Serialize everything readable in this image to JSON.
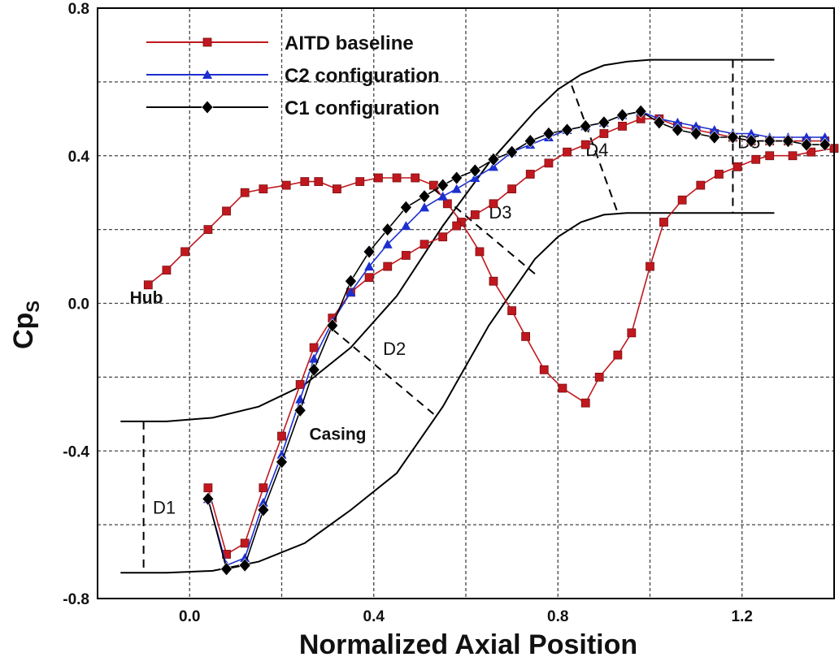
{
  "chart_data": {
    "type": "line",
    "xlabel": "Normalized Axial Position",
    "ylabel": "Cp",
    "ylabel_sub": "S",
    "xlim": [
      -0.2,
      1.4
    ],
    "ylim": [
      -0.8,
      0.8
    ],
    "xticks": [
      "0.0",
      "0.4",
      "0.8",
      "1.2"
    ],
    "xtick_values": [
      0.0,
      0.4,
      0.8,
      1.2
    ],
    "yticks": [
      "0.8",
      "0.4",
      "0.0",
      "-0.4",
      "-0.8"
    ],
    "ytick_values": [
      0.8,
      0.4,
      0.0,
      -0.4,
      -0.8
    ],
    "grid_x": [
      0.2,
      0.6,
      1.0
    ],
    "grid_y": [
      0.6,
      0.2,
      -0.2,
      -0.6
    ],
    "legend_position": "top-left",
    "series": [
      {
        "name": "AITD baseline",
        "color": "#c0181e",
        "marker": "square",
        "segments": [
          {
            "label": "Hub",
            "x": [
              -0.09,
              -0.05,
              -0.01,
              0.04,
              0.08,
              0.12,
              0.16,
              0.21,
              0.25,
              0.28,
              0.32,
              0.37,
              0.41,
              0.45,
              0.49,
              0.53,
              0.56,
              0.59,
              0.63,
              0.66,
              0.7,
              0.73,
              0.77,
              0.81,
              0.86,
              0.89,
              0.93,
              0.96,
              1.0,
              1.03,
              1.07,
              1.11,
              1.15,
              1.19,
              1.23,
              1.26,
              1.31,
              1.35,
              1.4
            ],
            "y": [
              0.05,
              0.09,
              0.14,
              0.2,
              0.25,
              0.3,
              0.31,
              0.32,
              0.33,
              0.33,
              0.31,
              0.33,
              0.34,
              0.34,
              0.34,
              0.32,
              0.27,
              0.22,
              0.14,
              0.06,
              -0.02,
              -0.09,
              -0.18,
              -0.23,
              -0.27,
              -0.2,
              -0.14,
              -0.08,
              0.1,
              0.22,
              0.28,
              0.32,
              0.35,
              0.37,
              0.39,
              0.4,
              0.4,
              0.41,
              0.42
            ]
          },
          {
            "label": "Casing",
            "x": [
              0.04,
              0.08,
              0.12,
              0.16,
              0.2,
              0.24,
              0.27,
              0.31,
              0.35,
              0.39,
              0.43,
              0.47,
              0.51,
              0.55,
              0.58,
              0.62,
              0.66,
              0.7,
              0.74,
              0.78,
              0.82,
              0.86,
              0.9,
              0.94,
              0.98,
              1.02,
              1.06,
              1.1,
              1.14,
              1.18,
              1.22,
              1.26,
              1.3,
              1.34,
              1.38
            ],
            "y": [
              -0.5,
              -0.68,
              -0.65,
              -0.5,
              -0.36,
              -0.22,
              -0.12,
              -0.04,
              0.03,
              0.07,
              0.1,
              0.13,
              0.16,
              0.18,
              0.21,
              0.24,
              0.27,
              0.31,
              0.35,
              0.38,
              0.41,
              0.43,
              0.46,
              0.48,
              0.5,
              0.5,
              0.48,
              0.47,
              0.46,
              0.45,
              0.44,
              0.44,
              0.44,
              0.44,
              0.44
            ]
          }
        ]
      },
      {
        "name": "C2 configuration",
        "color": "#1c2fd0",
        "marker": "triangle",
        "x": [
          0.04,
          0.08,
          0.12,
          0.16,
          0.2,
          0.24,
          0.27,
          0.31,
          0.35,
          0.39,
          0.43,
          0.47,
          0.51,
          0.55,
          0.58,
          0.62,
          0.66,
          0.7,
          0.74,
          0.78,
          0.82,
          0.86,
          0.9,
          0.94,
          0.98,
          1.02,
          1.06,
          1.1,
          1.14,
          1.18,
          1.22,
          1.26,
          1.3,
          1.34,
          1.38
        ],
        "y": [
          -0.53,
          -0.71,
          -0.69,
          -0.54,
          -0.41,
          -0.26,
          -0.15,
          -0.05,
          0.03,
          0.1,
          0.16,
          0.21,
          0.26,
          0.29,
          0.31,
          0.34,
          0.37,
          0.41,
          0.43,
          0.45,
          0.47,
          0.48,
          0.49,
          0.51,
          0.52,
          0.5,
          0.49,
          0.48,
          0.47,
          0.46,
          0.46,
          0.45,
          0.45,
          0.45,
          0.45
        ]
      },
      {
        "name": "C1 configuration",
        "color": "#000000",
        "marker": "diamond",
        "x": [
          0.04,
          0.08,
          0.12,
          0.16,
          0.2,
          0.24,
          0.27,
          0.31,
          0.35,
          0.39,
          0.43,
          0.47,
          0.51,
          0.55,
          0.58,
          0.62,
          0.66,
          0.7,
          0.74,
          0.78,
          0.82,
          0.86,
          0.9,
          0.94,
          0.98,
          1.02,
          1.06,
          1.1,
          1.14,
          1.18,
          1.22,
          1.26,
          1.3,
          1.34,
          1.38
        ],
        "y": [
          -0.53,
          -0.72,
          -0.71,
          -0.56,
          -0.43,
          -0.29,
          -0.18,
          -0.06,
          0.06,
          0.14,
          0.2,
          0.26,
          0.29,
          0.32,
          0.34,
          0.36,
          0.39,
          0.41,
          0.44,
          0.46,
          0.47,
          0.48,
          0.49,
          0.51,
          0.52,
          0.49,
          0.47,
          0.46,
          0.45,
          0.45,
          0.44,
          0.44,
          0.44,
          0.43,
          0.43
        ]
      }
    ],
    "geometry": {
      "casing_wall": {
        "x": [
          -0.15,
          -0.05,
          0.05,
          0.15,
          0.25,
          0.35,
          0.45,
          0.55,
          0.65,
          0.75,
          0.8,
          0.85,
          0.9,
          0.95,
          1.0,
          1.1,
          1.2,
          1.27
        ],
        "y": [
          -0.32,
          -0.32,
          -0.31,
          -0.28,
          -0.22,
          -0.12,
          0.02,
          0.21,
          0.38,
          0.52,
          0.58,
          0.62,
          0.645,
          0.655,
          0.66,
          0.66,
          0.66,
          0.66
        ]
      },
      "hub_wall": {
        "x": [
          -0.15,
          -0.05,
          0.05,
          0.15,
          0.25,
          0.35,
          0.45,
          0.55,
          0.65,
          0.75,
          0.8,
          0.85,
          0.9,
          0.95,
          1.0,
          1.1,
          1.2,
          1.27
        ],
        "y": [
          -0.73,
          -0.73,
          -0.725,
          -0.7,
          -0.65,
          -0.56,
          -0.46,
          -0.28,
          -0.06,
          0.12,
          0.18,
          0.22,
          0.24,
          0.245,
          0.245,
          0.245,
          0.245,
          0.245
        ]
      },
      "sections": [
        {
          "label": "D1",
          "x1": -0.1,
          "y1": -0.32,
          "x2": -0.1,
          "y2": -0.73,
          "lx": -0.08,
          "ly": -0.57
        },
        {
          "label": "D2",
          "x1": 0.31,
          "y1": -0.07,
          "x2": 0.53,
          "y2": -0.3,
          "lx": 0.42,
          "ly": -0.14
        },
        {
          "label": "D3",
          "x1": 0.53,
          "y1": 0.31,
          "x2": 0.75,
          "y2": 0.08,
          "lx": 0.65,
          "ly": 0.23
        },
        {
          "label": "D4",
          "x1": 0.83,
          "y1": 0.59,
          "x2": 0.93,
          "y2": 0.245,
          "lx": 0.86,
          "ly": 0.4
        },
        {
          "label": "D5",
          "x1": 1.18,
          "y1": 0.66,
          "x2": 1.18,
          "y2": 0.245,
          "lx": 1.19,
          "ly": 0.42
        }
      ]
    },
    "annotations": [
      {
        "text": "Hub",
        "x": -0.13,
        "y": -0.0
      },
      {
        "text": "Casing",
        "x": 0.26,
        "y": -0.37
      }
    ]
  }
}
